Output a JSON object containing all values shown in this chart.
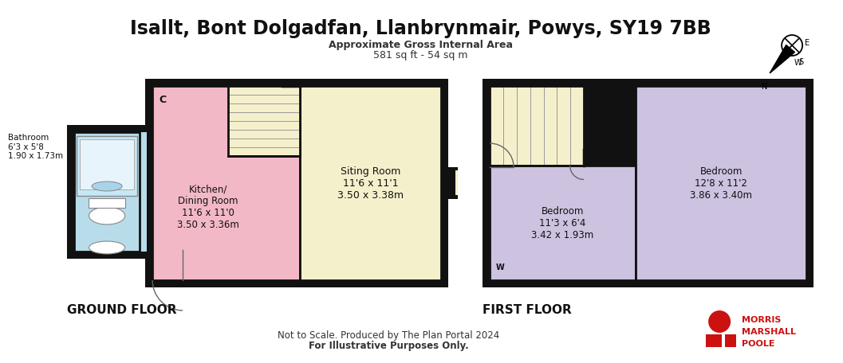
{
  "title": "Isallt, Bont Dolgadfan, Llanbrynmair, Powys, SY19 7BB",
  "subtitle1": "Approximate Gross Internal Area",
  "subtitle2": "581 sq ft - 54 sq m",
  "ground_floor_label": "GROUND FLOOR",
  "first_floor_label": "FIRST FLOOR",
  "footer1": "Not to Scale. Produced by The Plan Portal 2024",
  "footer2": "For Illustrative Purposes Only.",
  "bg_color": "#ffffff",
  "wall_color": "#111111",
  "bathroom_color": "#b8dcea",
  "kitchen_color": "#f2b8c6",
  "sitting_color": "#f5f0cc",
  "bedroom_lavender": "#cdc2e0",
  "stair_color": "#f5f0cc",
  "logo_color": "#cc1111",
  "rooms": {
    "bathroom": "Bathroom\n6'3 x 5'8\n1.90 x 1.73m",
    "kitchen": "Kitchen/\nDining Room\n11'6 x 11'0\n3.50 x 3.36m",
    "sitting": "Siting Room\n11'6 x 11'1\n3.50 x 3.38m",
    "bedroom_small": "Bedroom\n11'3 x 6'4\n3.42 x 1.93m",
    "bedroom_large": "Bedroom\n12'8 x 11'2\n3.86 x 3.40m"
  }
}
